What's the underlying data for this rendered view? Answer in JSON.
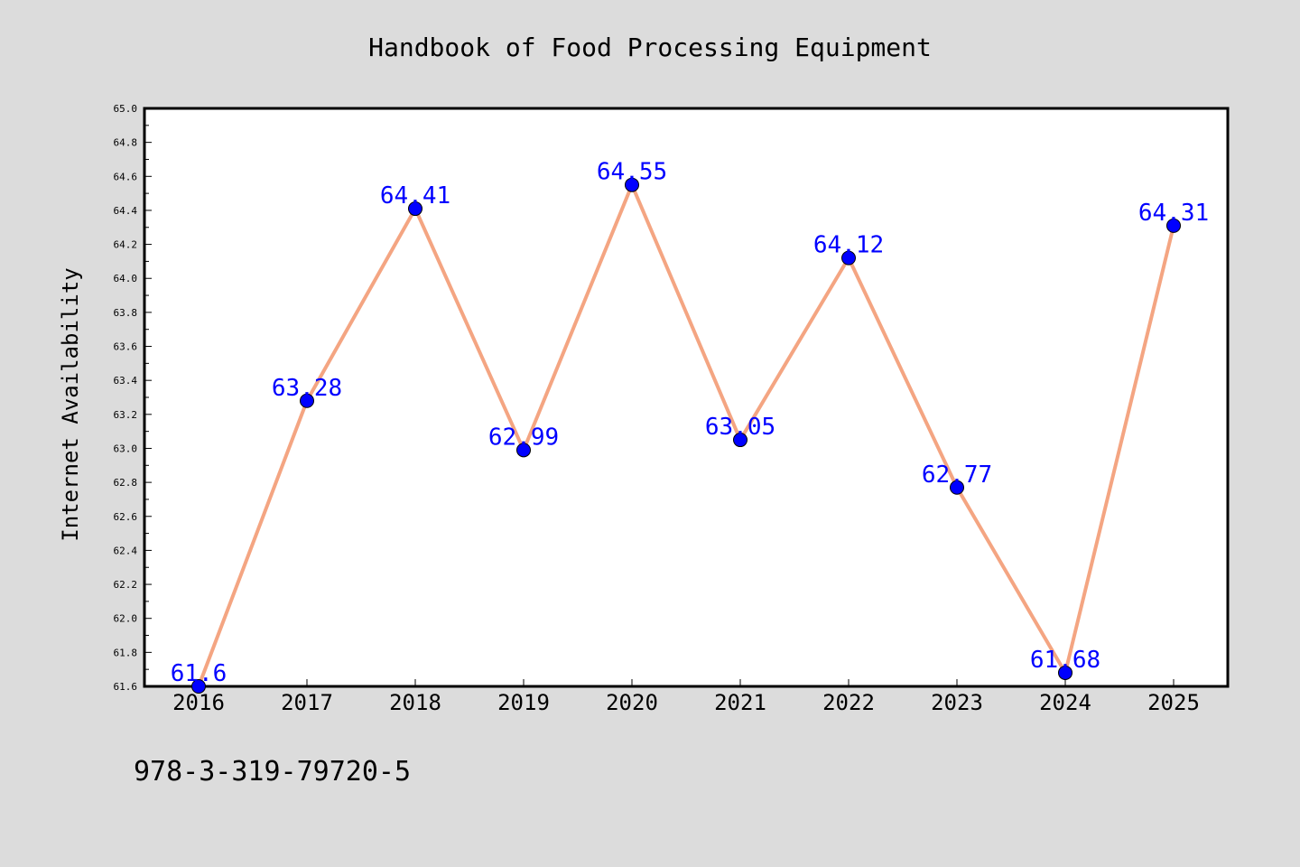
{
  "chart_data": {
    "type": "line",
    "title": "Handbook of Food Processing Equipment",
    "xlabel": "",
    "ylabel": "Internet Availability",
    "categories": [
      "2016",
      "2017",
      "2018",
      "2019",
      "2020",
      "2021",
      "2022",
      "2023",
      "2024",
      "2025"
    ],
    "series": [
      {
        "values": [
          61.6,
          63.28,
          64.41,
          62.99,
          64.55,
          63.05,
          64.12,
          62.77,
          61.68,
          64.31
        ],
        "labels": [
          "61.6",
          "63.28",
          "64.41",
          "62.99",
          "64.55",
          "63.05",
          "64.12",
          "62.77",
          "61.68",
          "64.31"
        ]
      }
    ],
    "ylim": [
      61.6,
      65.0
    ],
    "yticks": [
      "61.6",
      "61.8",
      "62.0",
      "62.2",
      "62.4",
      "62.6",
      "62.8",
      "63.0",
      "63.2",
      "63.4",
      "63.6",
      "63.8",
      "64.0",
      "64.2",
      "64.4",
      "64.6",
      "64.8",
      "65.0"
    ],
    "grid": false,
    "line_color": "#f4a582",
    "marker_color": "#0000ff",
    "label_color": "#0000ff",
    "annotation": "978-3-319-79720-5"
  }
}
